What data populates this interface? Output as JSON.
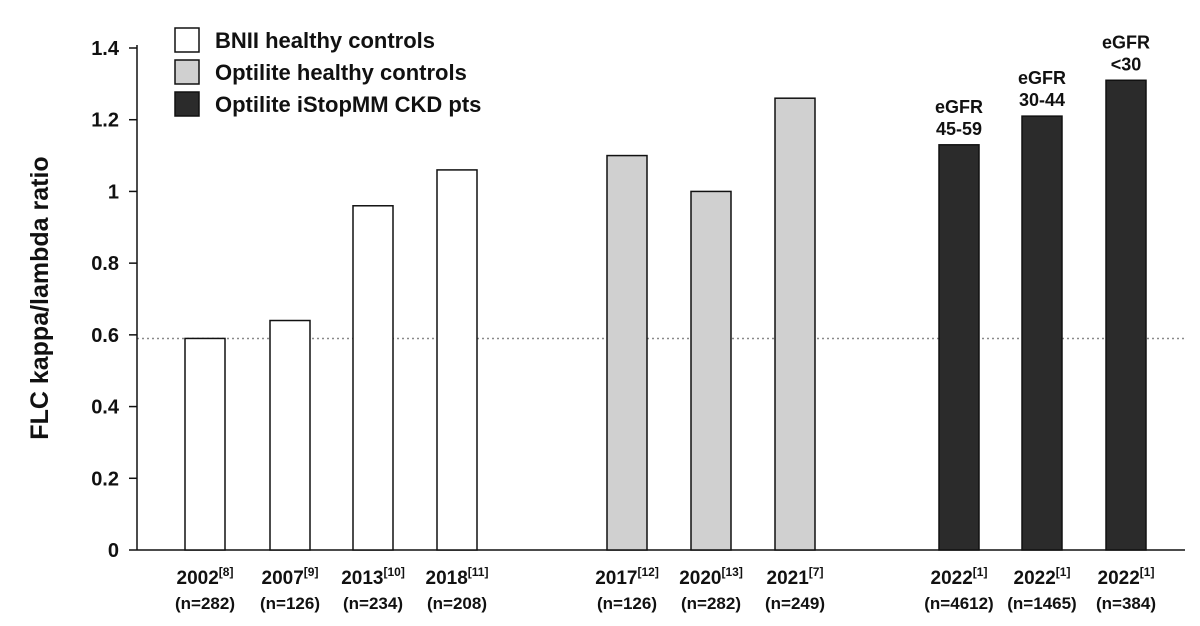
{
  "chart_data": {
    "type": "bar",
    "ylabel": "FLC kappa/lambda ratio",
    "ylim": [
      0,
      1.4
    ],
    "yticks": [
      "0",
      "0.2",
      "0.4",
      "0.6",
      "0.8",
      "1",
      "1.2",
      "1.4"
    ],
    "reference_line": 0.59,
    "legend": {
      "placement": "top-left",
      "entries": [
        {
          "label": "BNII healthy controls",
          "color": "#ffffff"
        },
        {
          "label": "Optilite healthy controls",
          "color": "#d0d0d0"
        },
        {
          "label": "Optilite iStopMM CKD pts",
          "color": "#2b2b2b"
        }
      ]
    },
    "bars": [
      {
        "year": "2002",
        "ref": "[8]",
        "n": "(n=282)",
        "value": 0.59,
        "group": 0,
        "label": []
      },
      {
        "year": "2007",
        "ref": "[9]",
        "n": "(n=126)",
        "value": 0.64,
        "group": 0,
        "label": []
      },
      {
        "year": "2013",
        "ref": "[10]",
        "n": "(n=234)",
        "value": 0.96,
        "group": 0,
        "label": []
      },
      {
        "year": "2018",
        "ref": "[11]",
        "n": "(n=208)",
        "value": 1.06,
        "group": 0,
        "label": []
      },
      {
        "year": "2017",
        "ref": "[12]",
        "n": "(n=126)",
        "value": 1.1,
        "group": 1,
        "label": []
      },
      {
        "year": "2020",
        "ref": "[13]",
        "n": "(n=282)",
        "value": 1.0,
        "group": 1,
        "label": []
      },
      {
        "year": "2021",
        "ref": "[7]",
        "n": "(n=249)",
        "value": 1.26,
        "group": 1,
        "label": []
      },
      {
        "year": "2022",
        "ref": "[1]",
        "n": "(n=4612)",
        "value": 1.13,
        "group": 2,
        "label": [
          "eGFR",
          "45-59"
        ]
      },
      {
        "year": "2022",
        "ref": "[1]",
        "n": "(n=1465)",
        "value": 1.21,
        "group": 2,
        "label": [
          "eGFR",
          "30-44"
        ]
      },
      {
        "year": "2022",
        "ref": "[1]",
        "n": "(n=384)",
        "value": 1.31,
        "group": 2,
        "label": [
          "eGFR",
          "<30"
        ]
      }
    ]
  }
}
